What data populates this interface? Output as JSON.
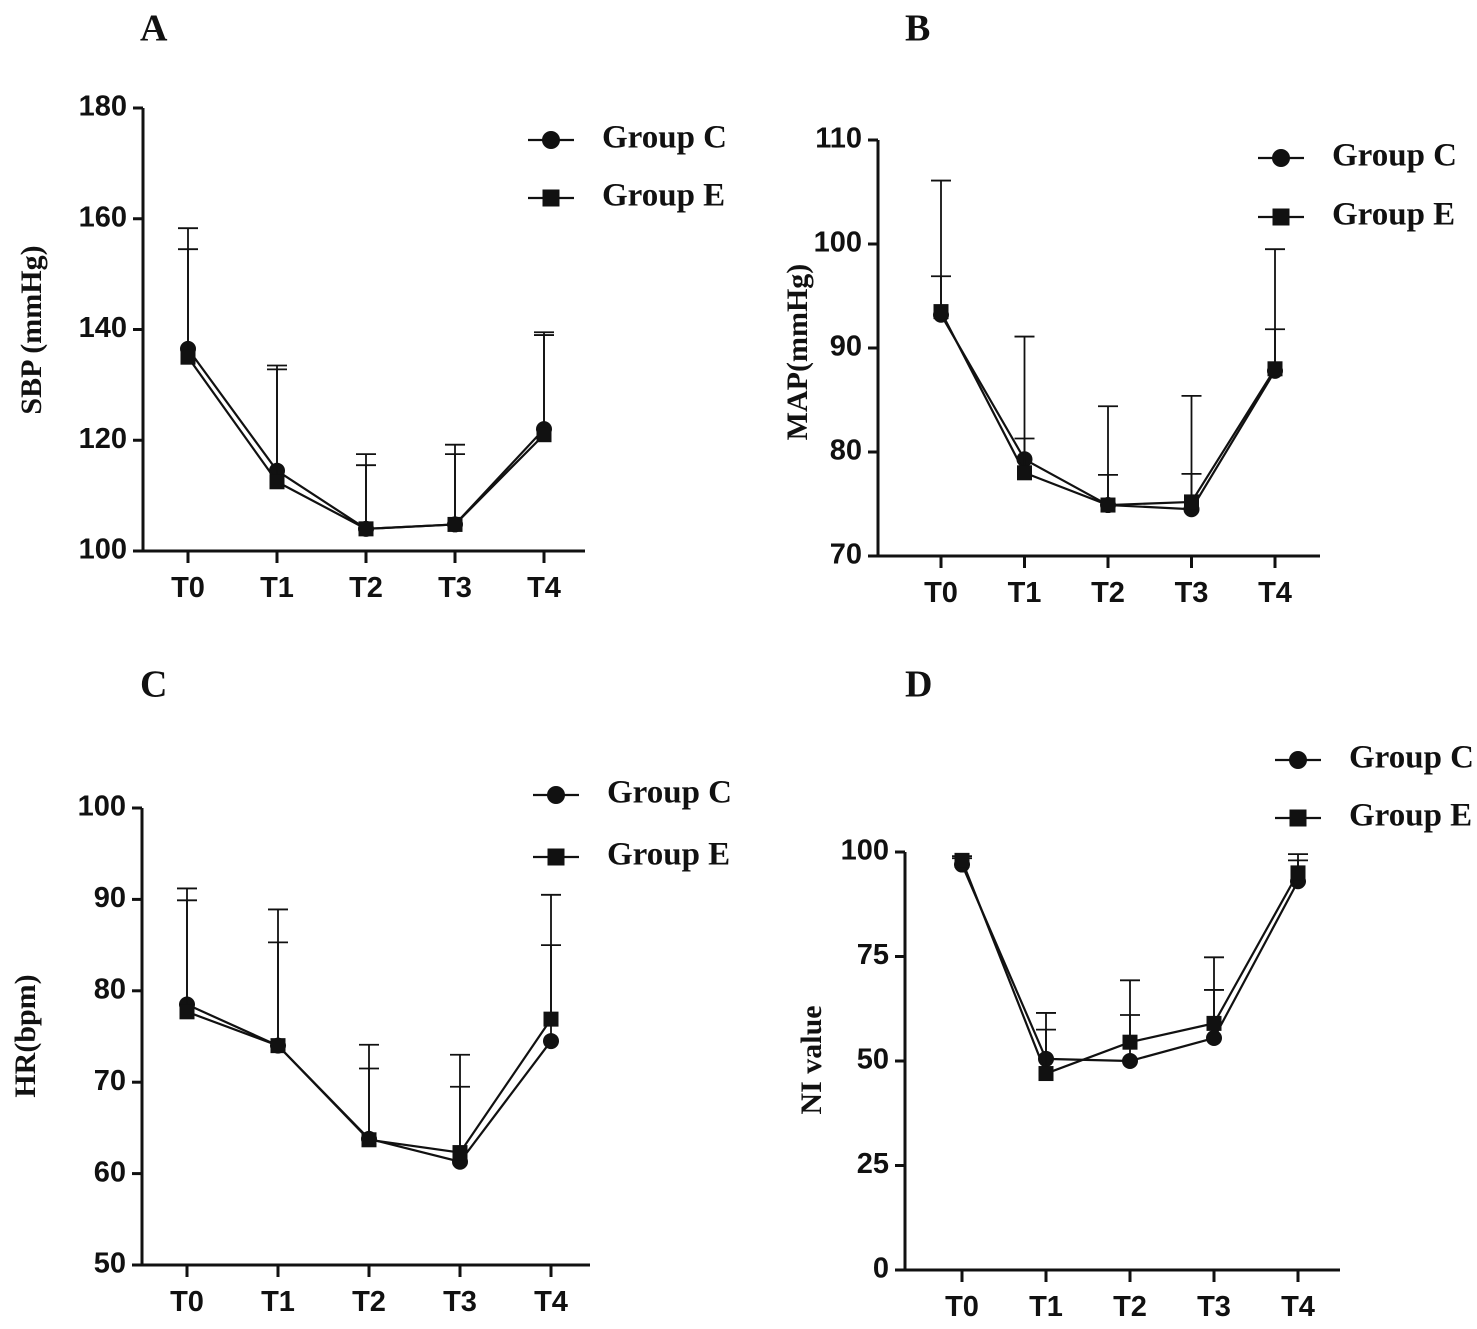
{
  "chart_data": [
    {
      "panel": "A",
      "type": "line",
      "title": "",
      "xlabel": "",
      "ylabel": "SBP (mmHg)",
      "categories": [
        "T0",
        "T1",
        "T2",
        "T3",
        "T4"
      ],
      "ylim": [
        100,
        180
      ],
      "yticks": [
        100,
        120,
        140,
        160,
        180
      ],
      "legend_position": "top-right",
      "series": [
        {
          "name": "Group C",
          "marker": "circle",
          "values": [
            136.5,
            114.5,
            104,
            104.8,
            122
          ],
          "error_upper": [
            154.5,
            132.8,
            115.5,
            117.5,
            139
          ]
        },
        {
          "name": "Group E",
          "marker": "square",
          "values": [
            135,
            112.5,
            104,
            104.8,
            121
          ],
          "error_upper": [
            158.3,
            133.5,
            117.5,
            119.2,
            139.5
          ]
        }
      ]
    },
    {
      "panel": "B",
      "type": "line",
      "title": "",
      "xlabel": "",
      "ylabel": "MAP(mmHg)",
      "categories": [
        "T0",
        "T1",
        "T2",
        "T3",
        "T4"
      ],
      "ylim": [
        70,
        110
      ],
      "yticks": [
        70,
        80,
        90,
        100,
        110
      ],
      "legend_position": "top-right",
      "series": [
        {
          "name": "Group C",
          "marker": "circle",
          "values": [
            93.2,
            79.3,
            74.9,
            74.5,
            87.8
          ],
          "error_upper": [
            96.9,
            81.3,
            77.8,
            77.9,
            91.8
          ]
        },
        {
          "name": "Group E",
          "marker": "square",
          "values": [
            93.5,
            78,
            74.9,
            75.2,
            88
          ],
          "error_upper": [
            106.1,
            91.1,
            84.4,
            85.4,
            99.5
          ]
        }
      ]
    },
    {
      "panel": "C",
      "type": "line",
      "title": "",
      "xlabel": "",
      "ylabel": "HR(bpm)",
      "categories": [
        "T0",
        "T1",
        "T2",
        "T3",
        "T4"
      ],
      "ylim": [
        50,
        100
      ],
      "yticks": [
        50,
        60,
        70,
        80,
        90,
        100
      ],
      "legend_position": "top-right",
      "series": [
        {
          "name": "Group C",
          "marker": "circle",
          "values": [
            78.5,
            74,
            63.8,
            61.3,
            74.5
          ],
          "error_upper": [
            89.9,
            85.3,
            71.5,
            69.5,
            85
          ]
        },
        {
          "name": "Group E",
          "marker": "square",
          "values": [
            77.7,
            74,
            63.7,
            62.3,
            76.9
          ],
          "error_upper": [
            91.2,
            88.9,
            74.1,
            73,
            90.5
          ]
        }
      ]
    },
    {
      "panel": "D",
      "type": "line",
      "title": "",
      "xlabel": "",
      "ylabel": "NI value",
      "categories": [
        "T0",
        "T1",
        "T2",
        "T3",
        "T4"
      ],
      "ylim": [
        0,
        100
      ],
      "yticks": [
        0,
        25,
        50,
        75,
        100
      ],
      "legend_position": "top-right",
      "series": [
        {
          "name": "Group C",
          "marker": "circle",
          "values": [
            97,
            50.5,
            50,
            55.5,
            93
          ],
          "error_upper": [
            98.5,
            57.5,
            61,
            67,
            98
          ]
        },
        {
          "name": "Group E",
          "marker": "square",
          "values": [
            98,
            47,
            54.5,
            59,
            95
          ],
          "error_upper": [
            99,
            61.5,
            69.3,
            74.8,
            99.5
          ]
        }
      ]
    }
  ]
}
